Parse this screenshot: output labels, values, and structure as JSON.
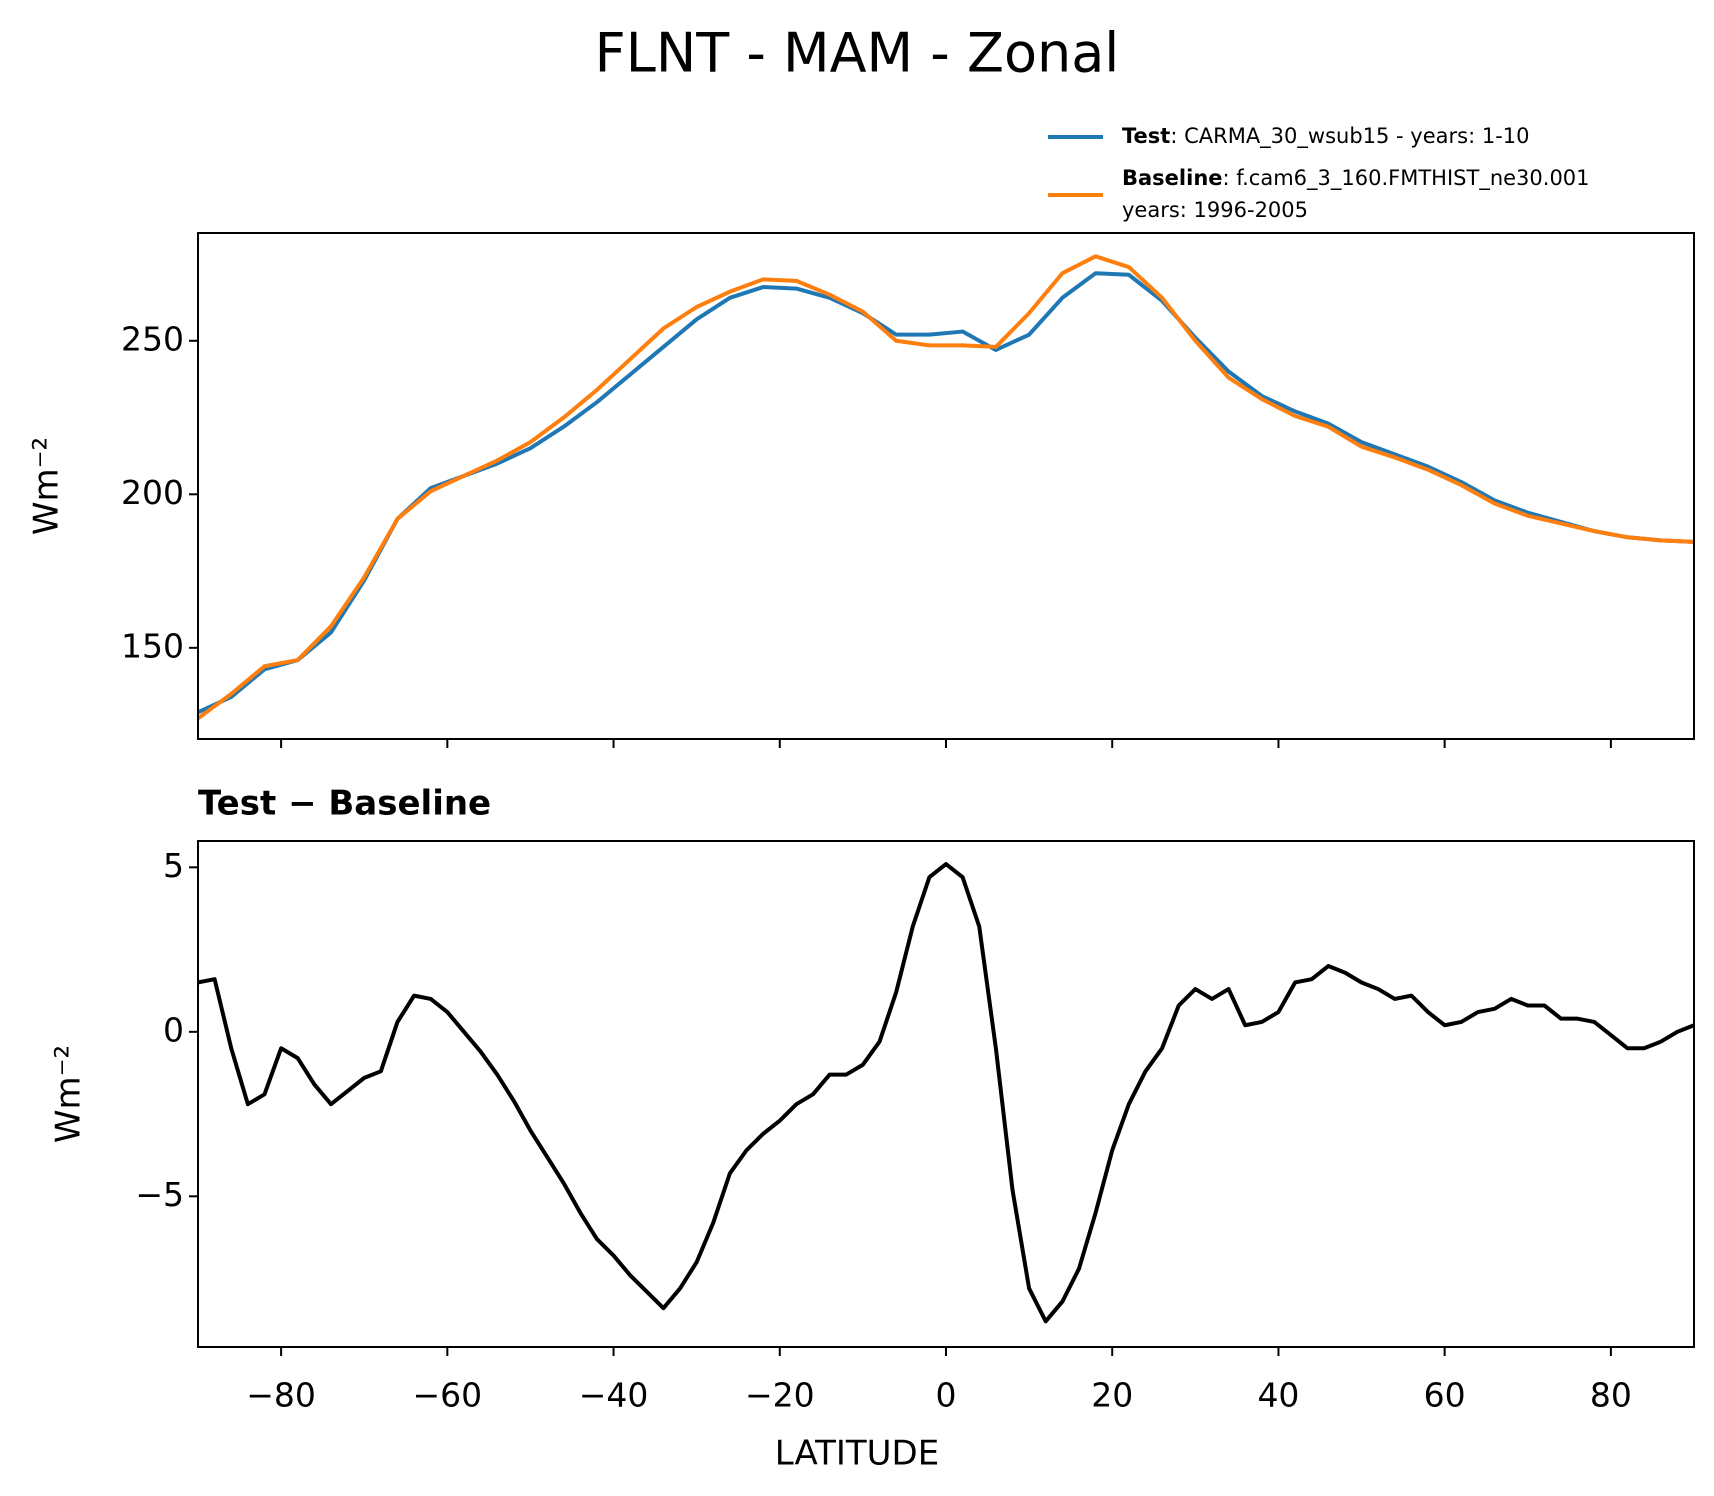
{
  "suptitle": "FLNT - MAM - Zonal",
  "chart_data": [
    {
      "type": "line",
      "ylabel": "Wm⁻²",
      "x": [
        -90,
        -86,
        -82,
        -78,
        -74,
        -70,
        -66,
        -62,
        -58,
        -54,
        -50,
        -46,
        -42,
        -38,
        -34,
        -30,
        -26,
        -22,
        -18,
        -14,
        -10,
        -6,
        -2,
        2,
        6,
        10,
        14,
        18,
        22,
        26,
        30,
        34,
        38,
        42,
        46,
        50,
        54,
        58,
        62,
        66,
        70,
        74,
        78,
        82,
        86,
        90
      ],
      "xlim": [
        -90,
        90
      ],
      "xticks": [
        -80,
        -60,
        -40,
        -20,
        0,
        20,
        40,
        60,
        80
      ],
      "ylim": [
        120.3,
        285.1
      ],
      "yticks": [
        150,
        200,
        250
      ],
      "series": [
        {
          "name": "Test",
          "description": [
            ": CARMA_30_wsub15 - years: 1-10"
          ],
          "color": "#1f77b4",
          "values": [
            129,
            134,
            143,
            146,
            155,
            172,
            192,
            202,
            206,
            210,
            215,
            222,
            230,
            239,
            248,
            257,
            264,
            267.5,
            267,
            264,
            259,
            252,
            252,
            253,
            247,
            252,
            264,
            272,
            271.5,
            263,
            251,
            240,
            232,
            227,
            223,
            217,
            213,
            209,
            204,
            198,
            194,
            191,
            188,
            186,
            185,
            184.5
          ]
        },
        {
          "name": "Baseline",
          "description": [
            ": f.cam6_3_160.FMTHIST_ne30.001",
            "years: 1996-2005"
          ],
          "color": "#ff7f0e",
          "values": [
            127,
            135,
            144,
            146,
            157,
            173,
            192,
            201,
            206,
            211,
            217,
            225,
            234,
            244,
            254,
            261,
            266,
            270,
            269.5,
            265,
            259.5,
            250,
            248.5,
            248.5,
            248,
            259,
            272,
            277.5,
            274,
            264,
            250,
            238,
            231,
            225.5,
            222,
            215.5,
            212,
            208,
            203,
            197,
            193,
            190.5,
            188,
            186,
            185,
            184.5
          ]
        }
      ]
    },
    {
      "type": "line",
      "title": "Test − Baseline",
      "xlabel": "LATITUDE",
      "ylabel": "Wm⁻²",
      "x": [
        -90,
        -88,
        -86,
        -84,
        -82,
        -80,
        -78,
        -76,
        -74,
        -72,
        -70,
        -68,
        -66,
        -64,
        -62,
        -60,
        -58,
        -56,
        -54,
        -52,
        -50,
        -48,
        -46,
        -44,
        -42,
        -40,
        -38,
        -36,
        -34,
        -32,
        -30,
        -28,
        -26,
        -24,
        -22,
        -20,
        -18,
        -16,
        -14,
        -12,
        -10,
        -8,
        -6,
        -4,
        -2,
        0,
        2,
        4,
        6,
        8,
        10,
        12,
        14,
        16,
        18,
        20,
        22,
        24,
        26,
        28,
        30,
        32,
        34,
        36,
        38,
        40,
        42,
        44,
        46,
        48,
        50,
        52,
        54,
        56,
        58,
        60,
        62,
        64,
        66,
        68,
        70,
        72,
        74,
        76,
        78,
        80,
        82,
        84,
        86,
        88,
        90
      ],
      "xlim": [
        -90,
        90
      ],
      "xticks": [
        {
          "value": -80,
          "label": "−80"
        },
        {
          "value": -60,
          "label": "−60"
        },
        {
          "value": -40,
          "label": "−40"
        },
        {
          "value": -20,
          "label": "−20"
        },
        0,
        20,
        40,
        60,
        80
      ],
      "ylim": [
        -9.58,
        5.8
      ],
      "yticks": [
        {
          "value": -5,
          "label": "−5"
        },
        0,
        5
      ],
      "series": [
        {
          "color": "#000000",
          "values": [
            1.5,
            1.6,
            -0.5,
            -2.2,
            -1.9,
            -0.5,
            -0.8,
            -1.6,
            -2.2,
            -1.8,
            -1.4,
            -1.2,
            0.3,
            1.1,
            1.0,
            0.6,
            0.0,
            -0.6,
            -1.3,
            -2.1,
            -3.0,
            -3.8,
            -4.6,
            -5.5,
            -6.3,
            -6.8,
            -7.4,
            -7.9,
            -8.4,
            -7.8,
            -7.0,
            -5.8,
            -4.3,
            -3.6,
            -3.1,
            -2.7,
            -2.2,
            -1.9,
            -1.3,
            -1.3,
            -1.0,
            -0.3,
            1.2,
            3.2,
            4.7,
            5.1,
            4.7,
            3.2,
            -0.5,
            -4.8,
            -7.8,
            -8.8,
            -8.2,
            -7.2,
            -5.5,
            -3.6,
            -2.2,
            -1.2,
            -0.5,
            0.8,
            1.3,
            1.0,
            1.3,
            0.2,
            0.3,
            0.6,
            1.5,
            1.6,
            2.0,
            1.8,
            1.5,
            1.3,
            1.0,
            1.1,
            0.6,
            0.2,
            0.3,
            0.6,
            0.7,
            1.0,
            0.8,
            0.8,
            0.4,
            0.4,
            0.3,
            -0.1,
            -0.5,
            -0.5,
            -0.3,
            0.0,
            0.2
          ]
        }
      ]
    }
  ]
}
